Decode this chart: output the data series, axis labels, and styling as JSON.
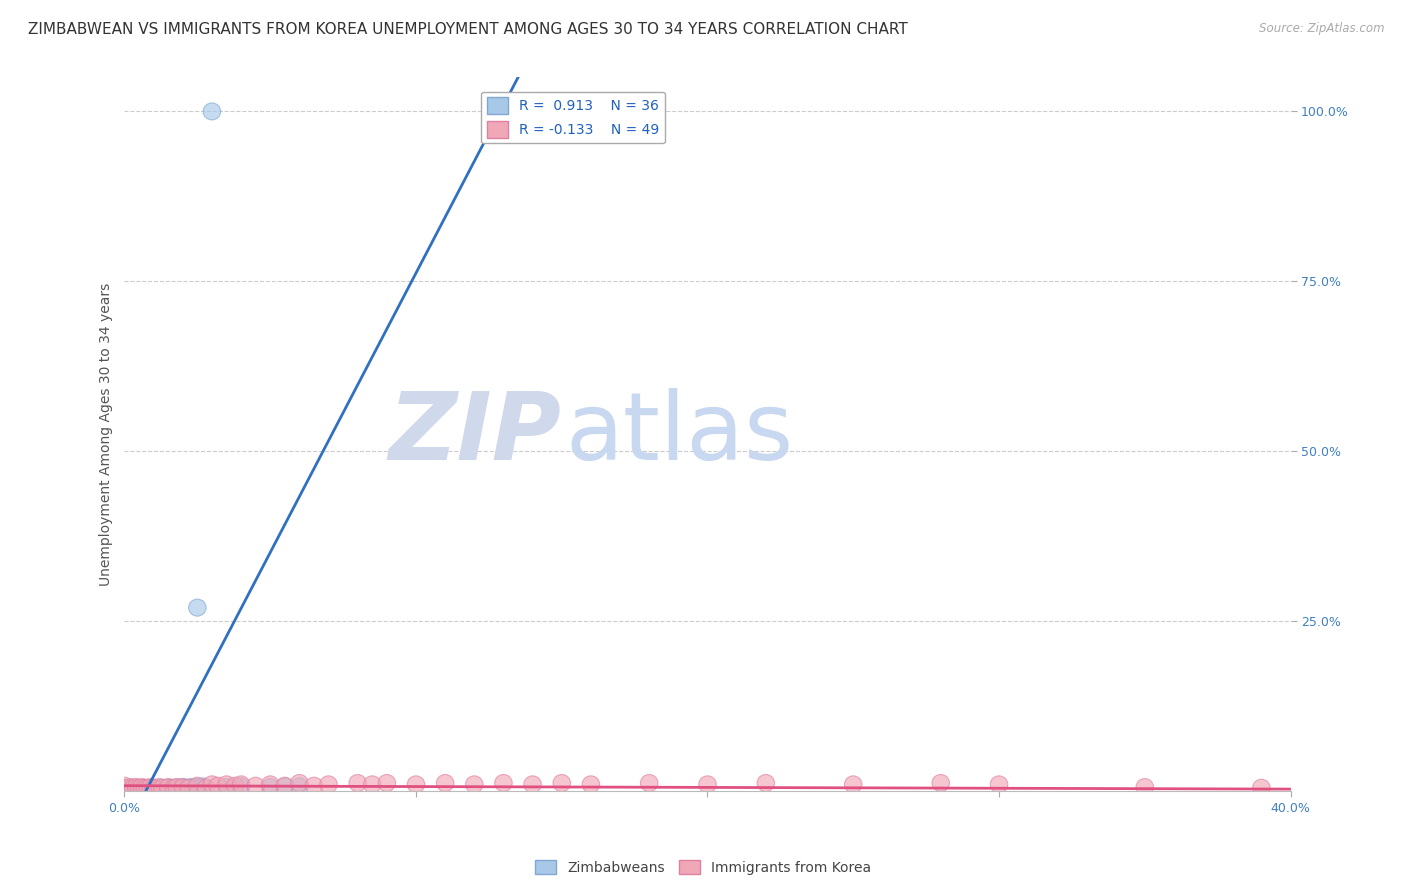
{
  "title": "ZIMBABWEAN VS IMMIGRANTS FROM KOREA UNEMPLOYMENT AMONG AGES 30 TO 34 YEARS CORRELATION CHART",
  "source": "Source: ZipAtlas.com",
  "ylabel": "Unemployment Among Ages 30 to 34 years",
  "xmin": 0.0,
  "xmax": 0.4,
  "ymin": 0.0,
  "ymax": 1.05,
  "blue_R": 0.913,
  "blue_N": 36,
  "pink_R": -0.133,
  "pink_N": 49,
  "blue_color": "#a8c8e8",
  "pink_color": "#f0a8b8",
  "blue_edge_color": "#80a8d0",
  "pink_edge_color": "#e080a0",
  "blue_line_color": "#3070c0",
  "pink_line_color": "#e05080",
  "watermark_zip_color": "#d0d8ec",
  "watermark_atlas_color": "#c8d8f0",
  "background_color": "#ffffff",
  "grid_color": "#cccccc",
  "blue_scatter_x": [
    0.0,
    0.002,
    0.003,
    0.004,
    0.005,
    0.005,
    0.006,
    0.007,
    0.008,
    0.009,
    0.01,
    0.01,
    0.01,
    0.012,
    0.013,
    0.015,
    0.015,
    0.015,
    0.016,
    0.018,
    0.019,
    0.02,
    0.02,
    0.021,
    0.022,
    0.023,
    0.025,
    0.025,
    0.027,
    0.025,
    0.03,
    0.035,
    0.04,
    0.05,
    0.055,
    0.06
  ],
  "blue_scatter_y": [
    0.003,
    0.002,
    0.003,
    0.003,
    0.003,
    0.004,
    0.003,
    0.003,
    0.004,
    0.003,
    0.003,
    0.004,
    0.005,
    0.004,
    0.004,
    0.004,
    0.005,
    0.005,
    0.005,
    0.005,
    0.005,
    0.005,
    0.006,
    0.005,
    0.005,
    0.006,
    0.006,
    0.006,
    0.007,
    0.27,
    1.0,
    0.006,
    0.007,
    0.006,
    0.007,
    0.007
  ],
  "pink_scatter_x": [
    0.0,
    0.0,
    0.002,
    0.003,
    0.004,
    0.005,
    0.006,
    0.007,
    0.008,
    0.009,
    0.01,
    0.012,
    0.013,
    0.015,
    0.017,
    0.018,
    0.02,
    0.022,
    0.025,
    0.028,
    0.03,
    0.032,
    0.035,
    0.038,
    0.04,
    0.045,
    0.05,
    0.055,
    0.06,
    0.065,
    0.07,
    0.08,
    0.085,
    0.09,
    0.1,
    0.11,
    0.12,
    0.13,
    0.14,
    0.15,
    0.16,
    0.18,
    0.2,
    0.22,
    0.25,
    0.28,
    0.3,
    0.35,
    0.39
  ],
  "pink_scatter_y": [
    0.005,
    0.008,
    0.006,
    0.005,
    0.006,
    0.005,
    0.006,
    0.005,
    0.005,
    0.006,
    0.005,
    0.006,
    0.005,
    0.006,
    0.005,
    0.006,
    0.006,
    0.005,
    0.008,
    0.005,
    0.01,
    0.008,
    0.01,
    0.008,
    0.01,
    0.008,
    0.01,
    0.008,
    0.012,
    0.008,
    0.01,
    0.012,
    0.01,
    0.012,
    0.01,
    0.012,
    0.01,
    0.012,
    0.01,
    0.012,
    0.01,
    0.012,
    0.01,
    0.012,
    0.01,
    0.012,
    0.01,
    0.006,
    0.005
  ],
  "blue_line_x": [
    0.0,
    0.135
  ],
  "blue_line_y": [
    -0.06,
    1.05
  ],
  "pink_line_x": [
    0.0,
    0.4
  ],
  "pink_line_y": [
    0.008,
    0.003
  ],
  "title_fontsize": 11,
  "axis_label_fontsize": 10,
  "tick_fontsize": 9,
  "legend_fontsize": 10
}
